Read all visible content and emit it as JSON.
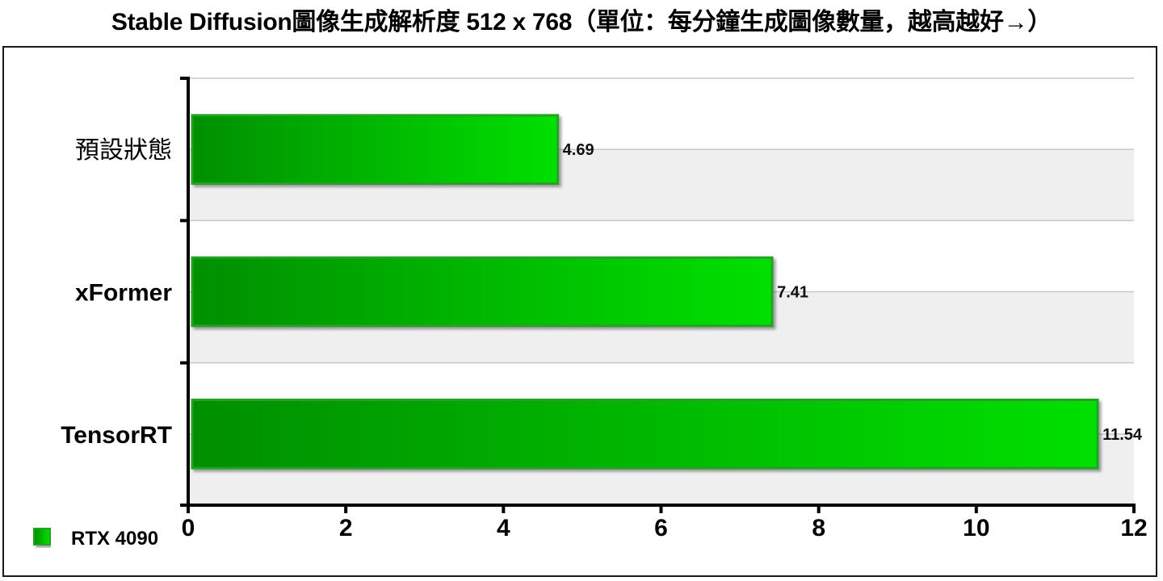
{
  "title": "Stable Diffusion圖像生成解析度 512 x 768（單位：每分鐘生成圖像數量，越高越好→）",
  "chart_data": {
    "type": "bar",
    "orientation": "horizontal",
    "categories": [
      "預設狀態",
      "xFormer",
      "TensorRT"
    ],
    "category_bold": [
      false,
      true,
      true
    ],
    "series": [
      {
        "name": "RTX 4090",
        "values": [
          4.69,
          7.41,
          11.54
        ],
        "value_labels": [
          "4.69",
          "7.41",
          "11.54"
        ],
        "color": "#1fd21f"
      }
    ],
    "xlim": [
      0,
      12
    ],
    "xticks": [
      0,
      2,
      4,
      6,
      8,
      10,
      12
    ],
    "xlabel": "",
    "ylabel": "",
    "grid": true,
    "legend": "bottom-left",
    "colors": {
      "bar_dark": "#008f00",
      "bar_light": "#00e000",
      "bar_border": "#25a125",
      "band": "#efefef",
      "grid": "#c8c8c8"
    }
  }
}
